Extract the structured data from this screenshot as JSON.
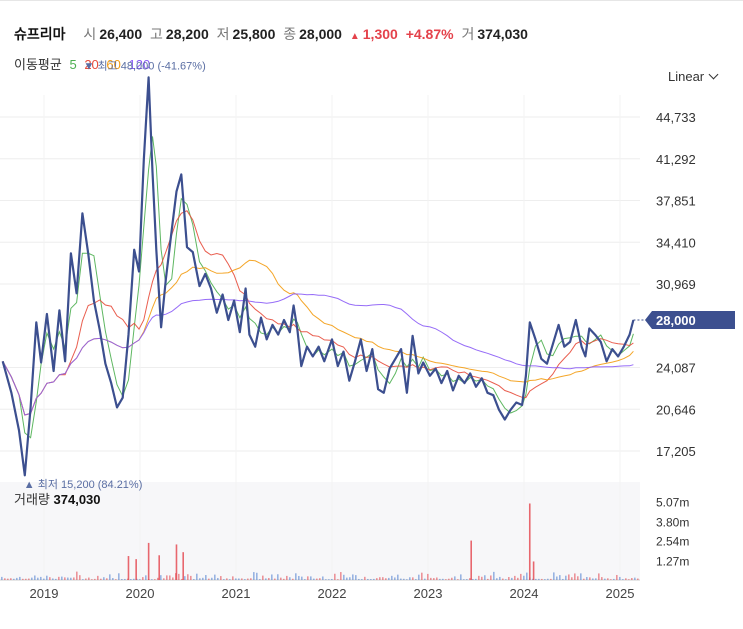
{
  "header": {
    "stock_name": "슈프리마",
    "open_label": "시",
    "open_value": "26,400",
    "high_label": "고",
    "high_value": "28,200",
    "low_label": "저",
    "low_value": "25,800",
    "close_label": "종",
    "close_value": "28,000",
    "change_value": "1,300",
    "change_percent": "+4.87%",
    "volume_label": "거",
    "volume_value": "374,030"
  },
  "moving_average": {
    "title": "이동평균",
    "periods": [
      {
        "label": "5",
        "color": "#4caf50"
      },
      {
        "label": "20",
        "color": "#e74c3c"
      },
      {
        "label": "60",
        "color": "#f39c12"
      },
      {
        "label": "120",
        "color": "#8b5cf6"
      }
    ]
  },
  "scale_selector": {
    "label": "Linear"
  },
  "colors": {
    "price": "#3c4f8f",
    "up": "#e4424b",
    "down": "#4a7bd0",
    "badge": "#3c4f8f"
  },
  "chart_data": {
    "type": "line",
    "y_tick_labels": [
      "44,733",
      "41,292",
      "37,851",
      "34,410",
      "30,969",
      "24,087",
      "20,646",
      "17,205"
    ],
    "y_ticks": [
      44733,
      41292,
      37851,
      34410,
      30969,
      24087,
      20646,
      17205
    ],
    "ylim": [
      15200,
      48000
    ],
    "x_tick_labels": [
      "2019",
      "2020",
      "2021",
      "2022",
      "2023",
      "2024",
      "2025"
    ],
    "x_ticks": [
      2019.0,
      2020.0,
      2021.0,
      2022.0,
      2023.0,
      2024.0,
      2025.0
    ],
    "xlim": [
      2018.57,
      2025.15
    ],
    "current_price_label": "28,000",
    "max_annotation": "최고  48,000 (-41.67%)",
    "min_annotation": "최저  15,200 (84.21%)",
    "price_points": [
      [
        2018.57,
        24600
      ],
      [
        2018.66,
        22000
      ],
      [
        2018.74,
        18900
      ],
      [
        2018.8,
        15200
      ],
      [
        2018.86,
        20800
      ],
      [
        2018.92,
        27800
      ],
      [
        2018.97,
        24500
      ],
      [
        2019.03,
        28500
      ],
      [
        2019.1,
        23800
      ],
      [
        2019.16,
        28800
      ],
      [
        2019.22,
        24600
      ],
      [
        2019.28,
        33500
      ],
      [
        2019.34,
        30200
      ],
      [
        2019.4,
        36800
      ],
      [
        2019.46,
        33500
      ],
      [
        2019.52,
        29600
      ],
      [
        2019.58,
        27200
      ],
      [
        2019.64,
        24400
      ],
      [
        2019.7,
        22800
      ],
      [
        2019.76,
        20800
      ],
      [
        2019.82,
        21600
      ],
      [
        2019.88,
        26800
      ],
      [
        2019.94,
        33800
      ],
      [
        2019.99,
        32000
      ],
      [
        2020.04,
        41200
      ],
      [
        2020.09,
        48000
      ],
      [
        2020.13,
        40200
      ],
      [
        2020.17,
        33800
      ],
      [
        2020.22,
        27400
      ],
      [
        2020.27,
        31400
      ],
      [
        2020.33,
        35400
      ],
      [
        2020.38,
        38600
      ],
      [
        2020.43,
        40000
      ],
      [
        2020.49,
        34000
      ],
      [
        2020.55,
        33600
      ],
      [
        2020.62,
        30800
      ],
      [
        2020.68,
        31800
      ],
      [
        2020.74,
        30600
      ],
      [
        2020.8,
        28600
      ],
      [
        2020.86,
        30100
      ],
      [
        2020.92,
        28000
      ],
      [
        2020.98,
        29600
      ],
      [
        2021.04,
        27000
      ],
      [
        2021.1,
        30600
      ],
      [
        2021.14,
        26800
      ],
      [
        2021.2,
        25800
      ],
      [
        2021.26,
        28200
      ],
      [
        2021.32,
        26400
      ],
      [
        2021.38,
        27600
      ],
      [
        2021.44,
        26800
      ],
      [
        2021.5,
        28000
      ],
      [
        2021.56,
        27000
      ],
      [
        2021.6,
        29200
      ],
      [
        2021.64,
        27200
      ],
      [
        2021.68,
        24200
      ],
      [
        2021.74,
        25800
      ],
      [
        2021.8,
        25000
      ],
      [
        2021.86,
        25800
      ],
      [
        2021.92,
        24600
      ],
      [
        2022.0,
        26400
      ],
      [
        2022.06,
        24200
      ],
      [
        2022.12,
        25400
      ],
      [
        2022.18,
        23000
      ],
      [
        2022.24,
        24600
      ],
      [
        2022.3,
        26400
      ],
      [
        2022.36,
        23800
      ],
      [
        2022.42,
        25600
      ],
      [
        2022.48,
        22300
      ],
      [
        2022.54,
        22000
      ],
      [
        2022.6,
        24000
      ],
      [
        2022.66,
        24800
      ],
      [
        2022.72,
        25600
      ],
      [
        2022.78,
        22000
      ],
      [
        2022.84,
        26700
      ],
      [
        2022.9,
        23600
      ],
      [
        2022.95,
        24500
      ],
      [
        2023.02,
        23400
      ],
      [
        2023.08,
        24000
      ],
      [
        2023.14,
        22800
      ],
      [
        2023.2,
        23800
      ],
      [
        2023.26,
        22200
      ],
      [
        2023.32,
        23400
      ],
      [
        2023.38,
        22800
      ],
      [
        2023.44,
        23600
      ],
      [
        2023.5,
        22500
      ],
      [
        2023.56,
        23200
      ],
      [
        2023.62,
        22000
      ],
      [
        2023.68,
        21800
      ],
      [
        2023.74,
        20600
      ],
      [
        2023.8,
        19800
      ],
      [
        2023.86,
        20600
      ],
      [
        2023.92,
        21200
      ],
      [
        2023.98,
        21000
      ],
      [
        2024.02,
        23400
      ],
      [
        2024.06,
        27800
      ],
      [
        2024.12,
        26400
      ],
      [
        2024.18,
        24800
      ],
      [
        2024.24,
        24400
      ],
      [
        2024.3,
        26000
      ],
      [
        2024.36,
        27600
      ],
      [
        2024.42,
        25800
      ],
      [
        2024.48,
        26200
      ],
      [
        2024.54,
        28000
      ],
      [
        2024.6,
        25800
      ],
      [
        2024.64,
        25000
      ],
      [
        2024.68,
        27300
      ],
      [
        2024.74,
        26800
      ],
      [
        2024.8,
        26200
      ],
      [
        2024.86,
        24600
      ],
      [
        2024.92,
        25600
      ],
      [
        2024.98,
        25000
      ],
      [
        2025.04,
        25800
      ],
      [
        2025.1,
        26800
      ],
      [
        2025.14,
        28000
      ]
    ],
    "ma_series": [
      {
        "name": "5",
        "smoothing": 3
      },
      {
        "name": "20",
        "smoothing": 10
      },
      {
        "name": "60",
        "smoothing": 24
      },
      {
        "name": "120",
        "smoothing": 48
      }
    ],
    "volume": {
      "title": "거래량",
      "current_value": "374,030",
      "y_tick_labels": [
        "5.07m",
        "3.80m",
        "2.54m",
        "1.27m"
      ],
      "y_ticks": [
        5.07,
        3.8,
        2.54,
        1.27
      ],
      "ylim": [
        0,
        6.34
      ],
      "spikes": [
        [
          2019.88,
          1.55
        ],
        [
          2019.96,
          1.35
        ],
        [
          2020.09,
          2.4
        ],
        [
          2020.2,
          1.6
        ],
        [
          2020.38,
          2.3
        ],
        [
          2020.45,
          1.8
        ],
        [
          2023.45,
          2.55
        ],
        [
          2024.06,
          4.95
        ],
        [
          2024.1,
          1.2
        ]
      ]
    }
  }
}
